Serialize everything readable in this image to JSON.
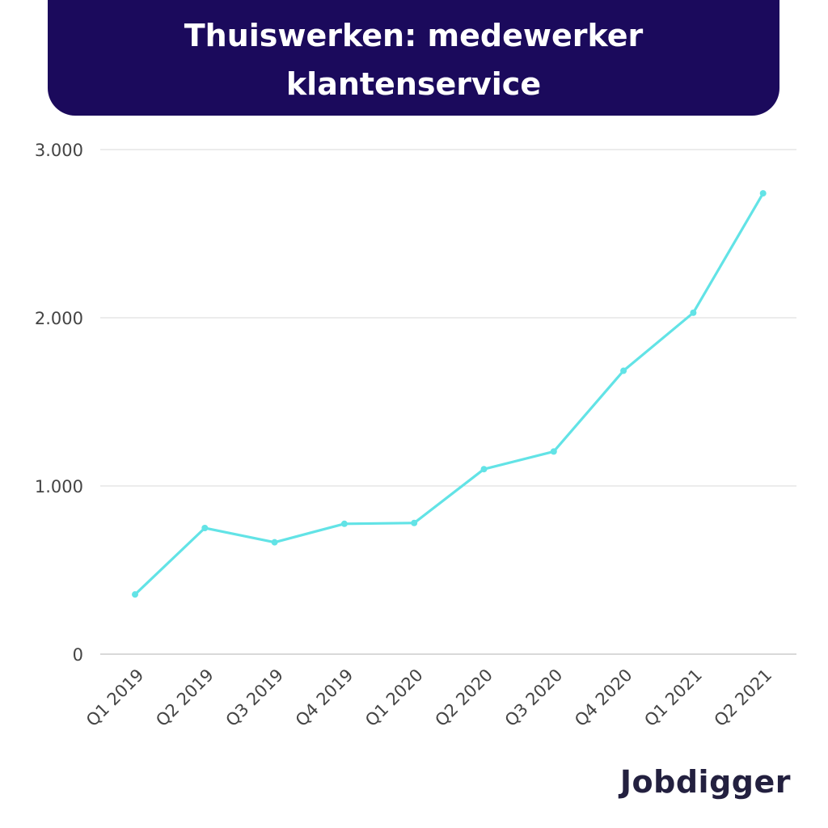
{
  "chart_data": {
    "type": "line",
    "title": "Thuiswerken: medewerker klantenservice",
    "categories": [
      "Q1 2019",
      "Q2 2019",
      "Q3 2019",
      "Q4 2019",
      "Q1 2020",
      "Q2 2020",
      "Q3 2020",
      "Q4 2020",
      "Q1 2021",
      "Q2 2021"
    ],
    "series": [
      {
        "values": [
          355,
          750,
          665,
          775,
          780,
          1100,
          1205,
          1685,
          2030,
          2740
        ]
      }
    ],
    "y_ticks": [
      0,
      1000,
      2000,
      3000
    ],
    "y_tick_labels": [
      "0",
      "1.000",
      "2.000",
      "3.000"
    ],
    "ylim": [
      0,
      3000
    ],
    "xlabel": "",
    "ylabel": "",
    "grid": true,
    "line_color": "#62e3e6",
    "grid_color": "#d9d9d9",
    "axis_color": "#b3b3b3",
    "title_background": "#1b0a5c"
  },
  "brand": {
    "logo_text": "Jobdigger"
  }
}
